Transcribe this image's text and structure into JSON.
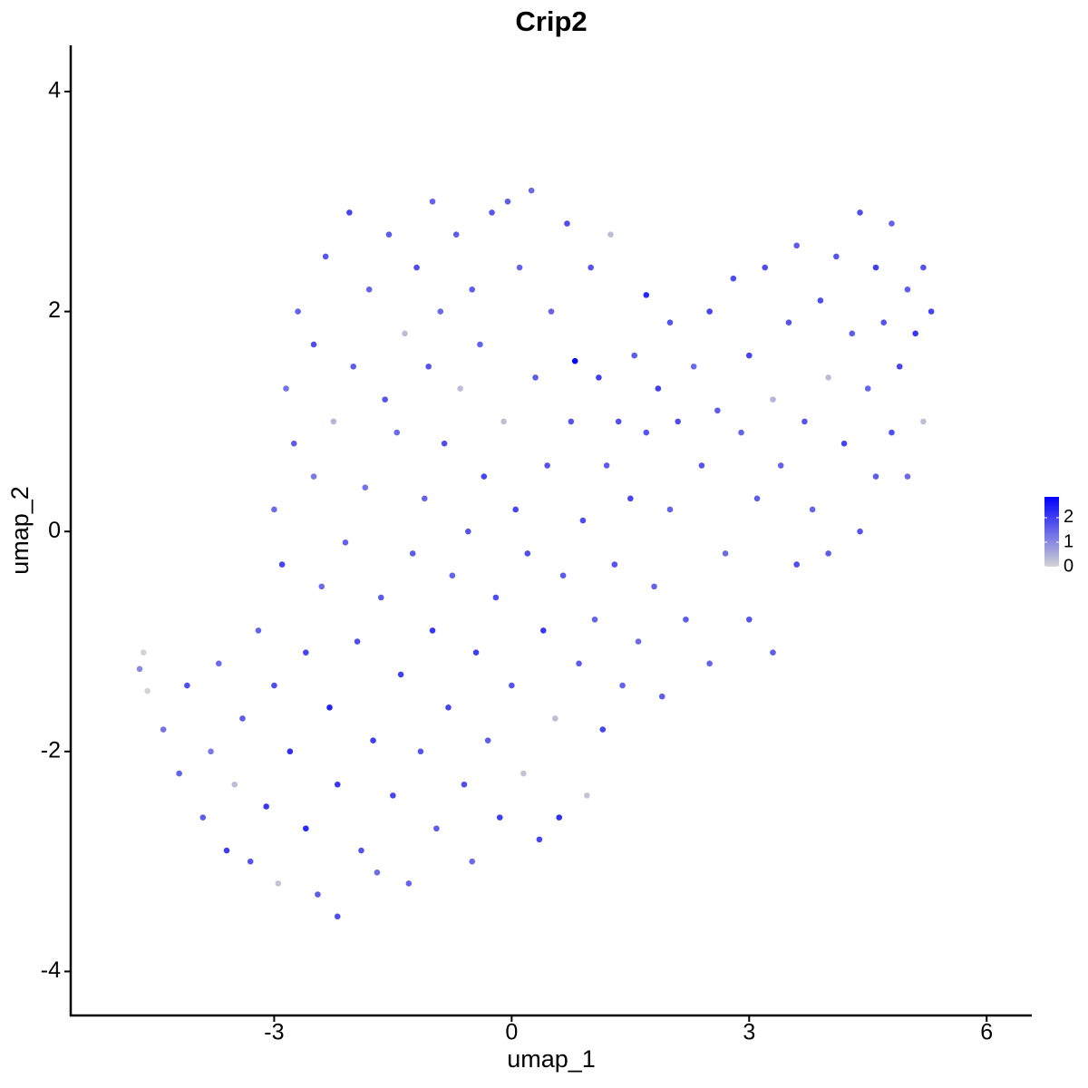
{
  "chart_data": {
    "type": "scatter",
    "title": "Crip2",
    "x_label": "umap_1",
    "y_label": "umap_2",
    "xlim": [
      -5.57,
      6.57
    ],
    "ylim": [
      -4.4,
      4.42
    ],
    "xticks": [
      -3,
      0,
      3,
      6
    ],
    "yticks": [
      -4,
      -2,
      0,
      2,
      4
    ],
    "x": [
      -4.7,
      -4.65,
      -4.6,
      -4.4,
      -4.2,
      -4.1,
      -3.9,
      -3.8,
      -3.7,
      -3.6,
      -3.5,
      -3.4,
      -3.3,
      -3.2,
      -3.1,
      -3.0,
      -3.0,
      -2.95,
      -2.9,
      -2.85,
      -2.8,
      -2.75,
      -2.7,
      -2.6,
      -2.6,
      -2.5,
      -2.5,
      -2.45,
      -2.4,
      -2.35,
      -2.3,
      -2.25,
      -2.2,
      -2.2,
      -2.1,
      -2.05,
      -2.0,
      -1.95,
      -1.9,
      -1.85,
      -1.8,
      -1.75,
      -1.7,
      -1.65,
      -1.6,
      -1.55,
      -1.5,
      -1.45,
      -1.4,
      -1.35,
      -1.3,
      -1.25,
      -1.2,
      -1.15,
      -1.1,
      -1.05,
      -1.0,
      -1.0,
      -0.95,
      -0.9,
      -0.85,
      -0.8,
      -0.75,
      -0.7,
      -0.65,
      -0.6,
      -0.55,
      -0.5,
      -0.5,
      -0.45,
      -0.4,
      -0.35,
      -0.3,
      -0.25,
      -0.2,
      -0.15,
      -0.1,
      -0.05,
      0.0,
      0.05,
      0.1,
      0.15,
      0.2,
      0.25,
      0.3,
      0.35,
      0.4,
      0.45,
      0.5,
      0.55,
      0.6,
      0.65,
      0.7,
      0.75,
      0.8,
      0.85,
      0.9,
      0.95,
      1.0,
      1.05,
      1.1,
      1.15,
      1.2,
      1.25,
      1.3,
      1.35,
      1.4,
      1.5,
      1.55,
      1.6,
      1.7,
      1.7,
      1.8,
      1.85,
      1.9,
      2.0,
      2.0,
      2.1,
      2.2,
      2.3,
      2.4,
      2.5,
      2.5,
      2.6,
      2.7,
      2.8,
      2.9,
      3.0,
      3.0,
      3.1,
      3.2,
      3.3,
      3.3,
      3.4,
      3.5,
      3.6,
      3.6,
      3.7,
      3.8,
      3.9,
      4.0,
      4.0,
      4.1,
      4.2,
      4.3,
      4.4,
      4.4,
      4.5,
      4.6,
      4.6,
      4.7,
      4.8,
      4.8,
      4.9,
      5.0,
      5.0,
      5.1,
      5.2,
      5.3,
      5.2
    ],
    "y": [
      -1.25,
      -1.1,
      -1.45,
      -1.8,
      -2.2,
      -1.4,
      -2.6,
      -2.0,
      -1.2,
      -2.9,
      -2.3,
      -1.7,
      -3.0,
      -0.9,
      -2.5,
      -1.4,
      0.2,
      -3.2,
      -0.3,
      1.3,
      -2.0,
      0.8,
      2.0,
      -1.1,
      -2.7,
      0.5,
      1.7,
      -3.3,
      -0.5,
      2.5,
      -1.6,
      1.0,
      -2.3,
      -3.5,
      -0.1,
      2.9,
      1.5,
      -1.0,
      -2.9,
      0.4,
      2.2,
      -1.9,
      -3.1,
      -0.6,
      1.2,
      2.7,
      -2.4,
      0.9,
      -1.3,
      1.8,
      -3.2,
      -0.2,
      2.4,
      -2.0,
      0.3,
      1.5,
      -0.9,
      3.0,
      -2.7,
      2.0,
      0.8,
      -1.6,
      -0.4,
      2.7,
      1.3,
      -2.3,
      0.0,
      -3.0,
      2.2,
      -1.1,
      1.7,
      0.5,
      -1.9,
      2.9,
      -0.6,
      -2.6,
      1.0,
      3.0,
      -1.4,
      0.2,
      2.4,
      -2.2,
      -0.2,
      3.1,
      1.4,
      -2.8,
      -0.9,
      0.6,
      2.0,
      -1.7,
      -2.6,
      -0.4,
      2.8,
      1.0,
      1.55,
      -1.2,
      0.1,
      -2.4,
      2.4,
      -0.8,
      1.4,
      -1.8,
      0.6,
      2.7,
      -0.3,
      1.0,
      -1.4,
      0.3,
      1.6,
      -1.0,
      2.15,
      0.9,
      -0.5,
      1.3,
      -1.5,
      0.2,
      1.9,
      1.0,
      -0.8,
      1.5,
      0.6,
      -1.2,
      2.0,
      1.1,
      -0.2,
      2.3,
      0.9,
      -0.8,
      1.6,
      0.3,
      2.4,
      1.2,
      -1.1,
      0.6,
      1.9,
      -0.3,
      2.6,
      1.0,
      0.2,
      2.1,
      1.4,
      -0.2,
      2.5,
      0.8,
      1.8,
      0.0,
      2.9,
      1.3,
      2.4,
      0.5,
      1.9,
      0.9,
      2.8,
      1.5,
      2.2,
      0.5,
      1.8,
      2.4,
      2.0,
      1.0
    ],
    "expression": [
      1,
      0,
      0,
      1.3,
      1.5,
      1.8,
      1.6,
      1.2,
      1.4,
      2,
      0.3,
      1.6,
      1.7,
      1.5,
      2.1,
      1.8,
      1.4,
      0.2,
      1.9,
      1.3,
      2.2,
      1.6,
      1.5,
      1.9,
      2.3,
      1.2,
      1.8,
      1.6,
      1.4,
      1.7,
      2.4,
      0.4,
      2.1,
      1.8,
      1.5,
      1.9,
      1.6,
      1.8,
      1.7,
      1.3,
      1.5,
      2.0,
      1.4,
      1.6,
      1.7,
      1.6,
      1.9,
      1.4,
      2.0,
      0.3,
      1.5,
      1.6,
      1.8,
      1.7,
      1.5,
      1.7,
      2.1,
      1.5,
      1.6,
      1.4,
      1.8,
      1.9,
      1.5,
      1.6,
      0.3,
      1.8,
      1.7,
      1.4,
      1.6,
      2.0,
      1.5,
      1.9,
      1.6,
      1.7,
      1.8,
      2.0,
      0.3,
      1.6,
      1.7,
      1.9,
      1.5,
      0.2,
      1.8,
      1.4,
      1.6,
      1.9,
      2.1,
      1.7,
      1.5,
      0.3,
      2.2,
      1.6,
      1.8,
      1.7,
      2.8,
      1.6,
      1.8,
      0.2,
      1.7,
      1.5,
      2.0,
      1.9,
      1.6,
      0.3,
      1.7,
      1.8,
      1.5,
      1.9,
      1.6,
      1.4,
      2.3,
      1.7,
      1.5,
      2.0,
      1.6,
      1.5,
      1.7,
      1.8,
      1.6,
      1.4,
      1.7,
      1.5,
      1.9,
      1.6,
      1.4,
      1.8,
      1.5,
      1.7,
      1.9,
      1.6,
      1.8,
      0.4,
      1.6,
      1.5,
      1.7,
      1.8,
      1.6,
      1.7,
      1.5,
      1.8,
      0.3,
      1.6,
      1.7,
      1.9,
      1.6,
      1.7,
      1.8,
      1.5,
      2.0,
      1.6,
      1.7,
      1.8,
      1.5,
      1.9,
      1.6,
      1.4,
      2.1,
      1.7,
      1.9,
      0.3
    ],
    "color_scale": {
      "low": "#d3d3d3",
      "high": "#0000ff",
      "lim": [
        0,
        2.85
      ],
      "ticks": [
        0,
        1,
        2
      ]
    }
  }
}
